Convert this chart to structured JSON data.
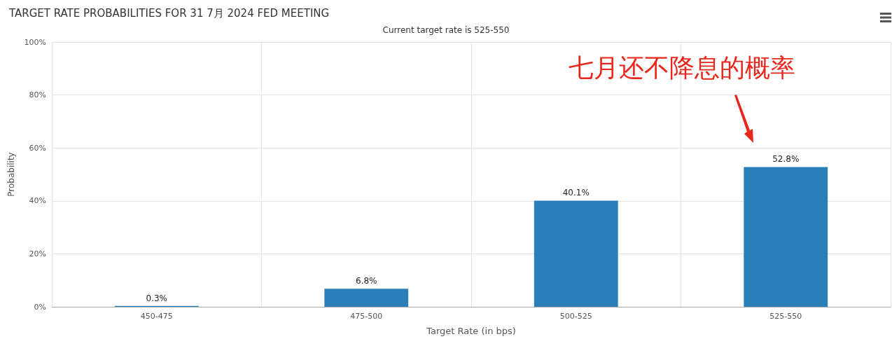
{
  "chart_data": {
    "type": "bar",
    "title": "TARGET RATE PROBABILITIES FOR 31 7月 2024 FED MEETING",
    "subtitle": "Current target rate is 525-550",
    "xlabel": "Target Rate (in bps)",
    "ylabel": "Probability",
    "categories": [
      "450-475",
      "475-500",
      "500-525",
      "525-550"
    ],
    "values": [
      0.3,
      6.8,
      40.1,
      52.8
    ],
    "value_labels": [
      "0.3%",
      "6.8%",
      "40.1%",
      "52.8%"
    ],
    "color": "#2a7fb8",
    "ylim": [
      0,
      100
    ],
    "yticks": [
      {
        "value": 0,
        "label": "0%"
      },
      {
        "value": 20,
        "label": "20%"
      },
      {
        "value": 40,
        "label": "40%"
      },
      {
        "value": 60,
        "label": "60%"
      },
      {
        "value": 80,
        "label": "80%"
      },
      {
        "value": 100,
        "label": "100%"
      }
    ],
    "grid": true,
    "annotations": [
      "七月还不降息的概率"
    ]
  }
}
